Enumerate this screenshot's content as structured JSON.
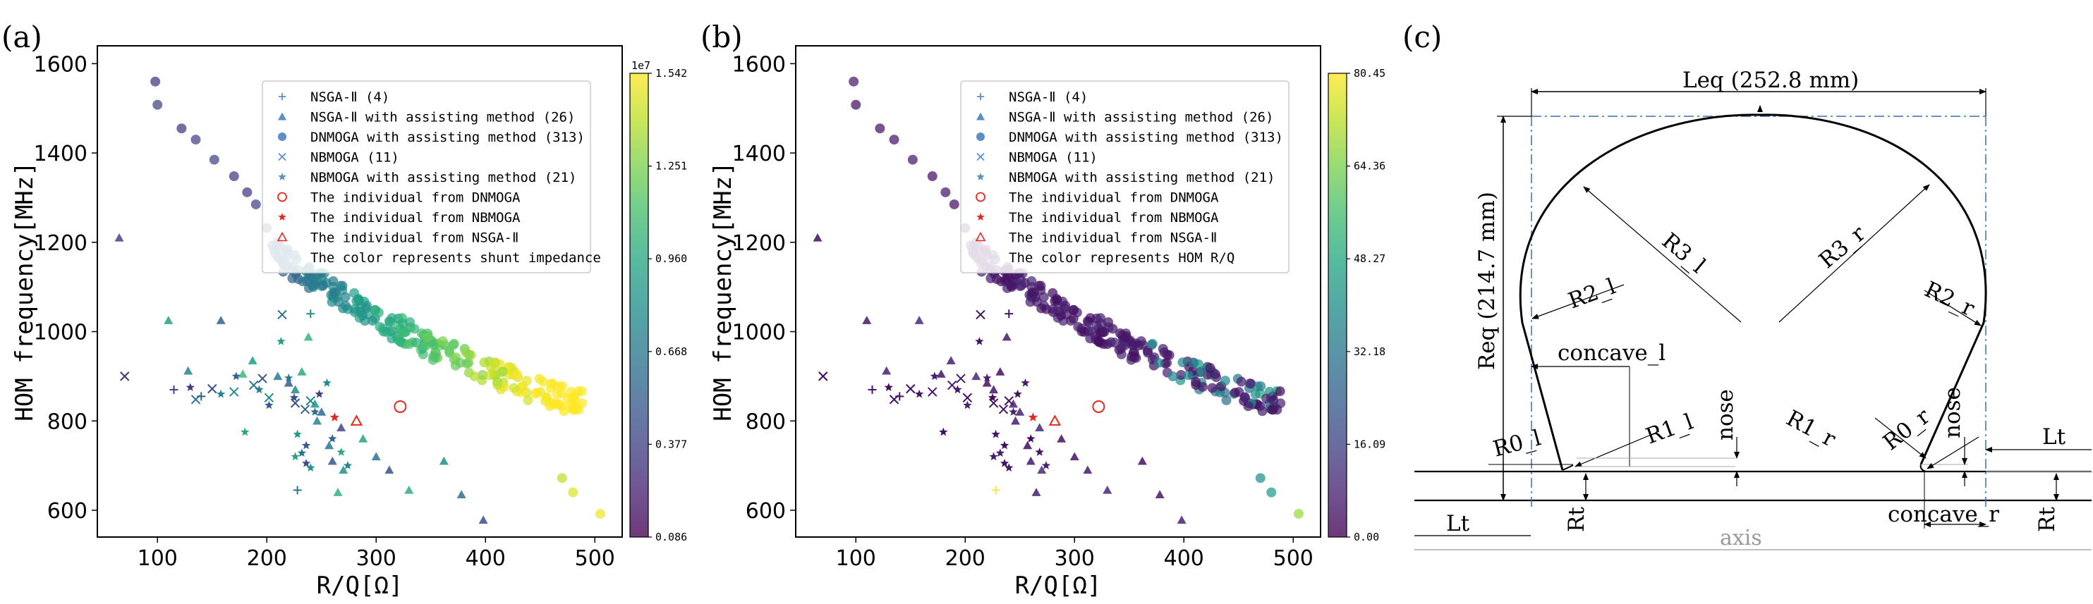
{
  "panels": [
    {
      "id": "a",
      "label": "(a)"
    },
    {
      "id": "b",
      "label": "(b)"
    },
    {
      "id": "c",
      "label": "(c)"
    }
  ],
  "chart_data": [
    {
      "type": "scatter",
      "panel": "(a)",
      "xlabel": "R/Q[Ω]",
      "ylabel": "HOM frequency[MHz]",
      "xlim": [
        45,
        525
      ],
      "ylim": [
        540,
        1640
      ],
      "xticks": [
        "100",
        "200",
        "300",
        "400",
        "500"
      ],
      "yticks": [
        "600",
        "800",
        "1000",
        "1200",
        "1400",
        "1600"
      ],
      "legend_position": "top-right",
      "legend": [
        {
          "label": "NSGA-Ⅱ (4)",
          "marker": "plus"
        },
        {
          "label": "NSGA-Ⅱ with assisting method (26)",
          "marker": "triangle"
        },
        {
          "label": "DNMOGA with assisting method (313)",
          "marker": "circle"
        },
        {
          "label": "NBMOGA (11)",
          "marker": "x"
        },
        {
          "label": "NBMOGA with assisting method (21)",
          "marker": "star"
        },
        {
          "label": "The individual from DNMOGA",
          "marker": "circle-red"
        },
        {
          "label": "The individual from NBMOGA",
          "marker": "star-red"
        },
        {
          "label": "The individual from NSGA-Ⅱ",
          "marker": "triangle-red"
        },
        {
          "label": "The color represents shunt impedance",
          "marker": "none"
        }
      ],
      "colorbar": {
        "exponent": "1e7",
        "ticks": [
          "0.086",
          "0.377",
          "0.668",
          "0.960",
          "1.251",
          "1.542"
        ],
        "min": 0.086,
        "max": 1.542
      },
      "highlighted": {
        "dnmoga": [
          322,
          832
        ],
        "nbmoga": [
          262,
          808
        ],
        "nsga": [
          282,
          800
        ]
      }
    },
    {
      "type": "scatter",
      "panel": "(b)",
      "xlabel": "R/Q[Ω]",
      "ylabel": "HOM frequency[MHz]",
      "xlim": [
        45,
        525
      ],
      "ylim": [
        540,
        1640
      ],
      "xticks": [
        "100",
        "200",
        "300",
        "400",
        "500"
      ],
      "yticks": [
        "600",
        "800",
        "1000",
        "1200",
        "1400",
        "1600"
      ],
      "legend_position": "top-right",
      "legend": [
        {
          "label": "NSGA-Ⅱ (4)",
          "marker": "plus"
        },
        {
          "label": "NSGA-Ⅱ with assisting method (26)",
          "marker": "triangle"
        },
        {
          "label": "DNMOGA with assisting method (313)",
          "marker": "circle"
        },
        {
          "label": "NBMOGA (11)",
          "marker": "x"
        },
        {
          "label": "NBMOGA with assisting method (21)",
          "marker": "star"
        },
        {
          "label": "The individual from DNMOGA",
          "marker": "circle-red"
        },
        {
          "label": "The individual from NBMOGA",
          "marker": "star-red"
        },
        {
          "label": "The individual from NSGA-Ⅱ",
          "marker": "triangle-red"
        },
        {
          "label": "The color represents HOM R/Q",
          "marker": "none"
        }
      ],
      "colorbar": {
        "exponent": "",
        "ticks": [
          "0.00",
          "16.09",
          "32.18",
          "48.27",
          "64.36",
          "80.45"
        ],
        "min": 0,
        "max": 80.45
      },
      "highlighted": {
        "dnmoga": [
          322,
          832
        ],
        "nbmoga": [
          262,
          808
        ],
        "nsga": [
          282,
          800
        ]
      }
    }
  ],
  "diagram": {
    "leq": "Leq (252.8 mm)",
    "req": "Req (214.7 mm)",
    "r3l": "R3_l",
    "r3r": "R3_r",
    "r2l": "R2_l",
    "r2r": "R2_r",
    "concave_l": "concave_l",
    "concave_r": "concave_r",
    "r1l": "R1_l",
    "r1r": "R1_r",
    "r0l": "R0_l",
    "r0r": "R0_r",
    "nose_l": "nose",
    "nose_r": "nose",
    "lt_l": "Lt",
    "lt_r": "Lt",
    "rt_l": "Rt",
    "rt_r": "Rt",
    "axis": "axis"
  },
  "colors": {
    "viridis_low": "#7b5ea7",
    "viridis_high": "#f2e84a",
    "red_marker": "#e8281e",
    "dash_blue": "#3a6fb0"
  }
}
